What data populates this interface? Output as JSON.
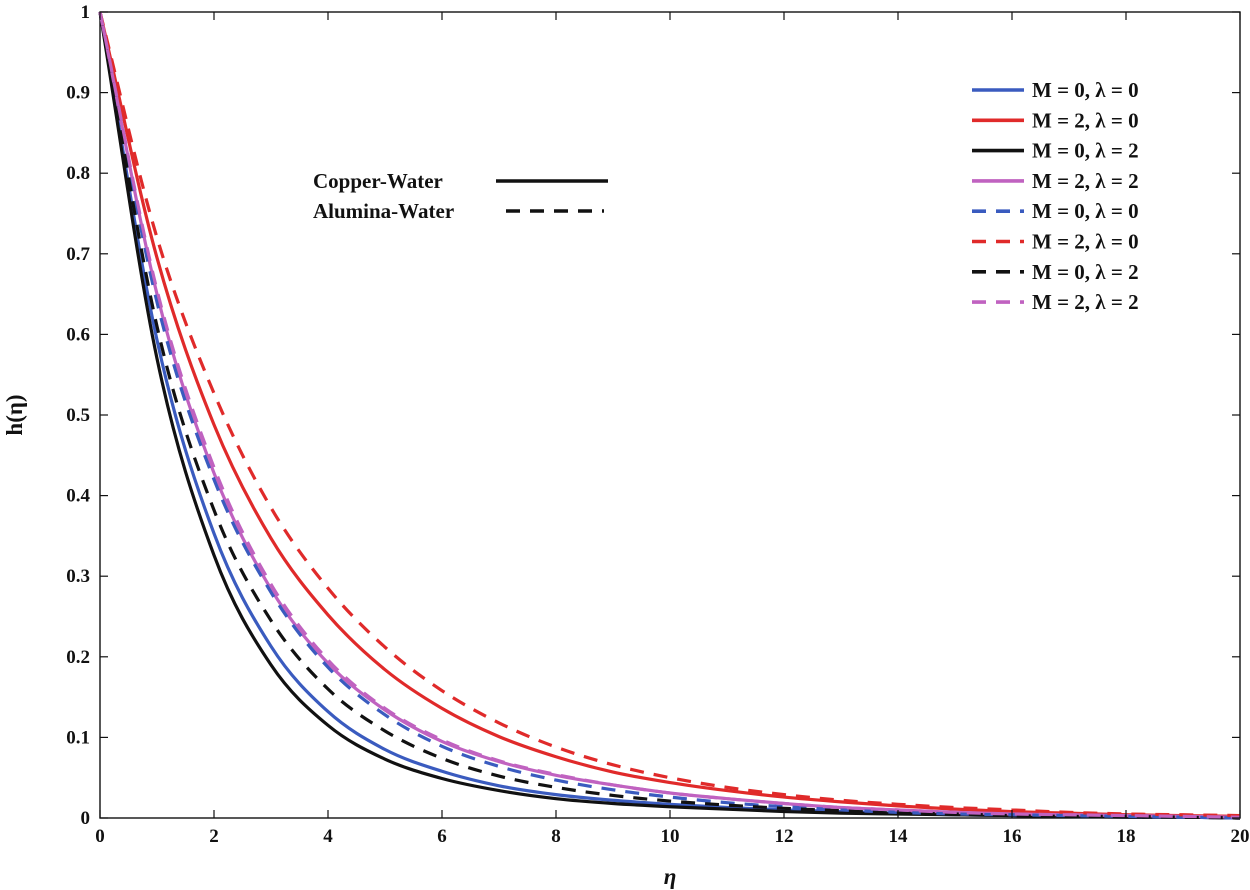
{
  "chart_data": {
    "type": "line",
    "title": "",
    "xlabel": "η",
    "ylabel": "h(η)",
    "xlim": [
      0,
      20
    ],
    "ylim": [
      0,
      1
    ],
    "x_ticks": [
      "0",
      "2",
      "4",
      "6",
      "8",
      "10",
      "12",
      "14",
      "16",
      "18",
      "20"
    ],
    "y_ticks": [
      "0",
      "0.1",
      "0.2",
      "0.3",
      "0.4",
      "0.5",
      "0.6",
      "0.7",
      "0.8",
      "0.9",
      "1"
    ],
    "grid": false,
    "legend_position": "top-right",
    "x": [
      0,
      1,
      2,
      3,
      4,
      5,
      6,
      7,
      8,
      9,
      10,
      11,
      12,
      13,
      14,
      15,
      16,
      17,
      18,
      19,
      20
    ],
    "series": [
      {
        "name": "M = 0, λ = 0",
        "style": "solid",
        "color": "#3a5bbf",
        "values": [
          1.0,
          0.593,
          0.353,
          0.213,
          0.132,
          0.085,
          0.058,
          0.04,
          0.029,
          0.022,
          0.017,
          0.013,
          0.01,
          0.008,
          0.006,
          0.004,
          0.003,
          0.002,
          0.001,
          0.001,
          0.0
        ]
      },
      {
        "name": "M = 2, λ = 0",
        "style": "solid",
        "color": "#e02a2a",
        "values": [
          1.0,
          0.695,
          0.488,
          0.347,
          0.252,
          0.184,
          0.136,
          0.101,
          0.076,
          0.057,
          0.044,
          0.034,
          0.026,
          0.02,
          0.015,
          0.011,
          0.008,
          0.006,
          0.004,
          0.003,
          0.002
        ]
      },
      {
        "name": "M = 0, λ = 2",
        "style": "solid",
        "color": "#111111",
        "values": [
          1.0,
          0.57,
          0.326,
          0.19,
          0.115,
          0.073,
          0.049,
          0.034,
          0.024,
          0.018,
          0.014,
          0.011,
          0.008,
          0.006,
          0.005,
          0.004,
          0.003,
          0.002,
          0.001,
          0.001,
          0.0
        ]
      },
      {
        "name": "M = 2, λ = 2",
        "style": "solid",
        "color": "#c062c0",
        "values": [
          1.0,
          0.65,
          0.428,
          0.284,
          0.192,
          0.134,
          0.095,
          0.07,
          0.053,
          0.041,
          0.031,
          0.024,
          0.018,
          0.013,
          0.01,
          0.007,
          0.005,
          0.004,
          0.003,
          0.002,
          0.001
        ]
      },
      {
        "name": "M = 0, λ = 0",
        "style": "dashed",
        "color": "#3a5bbf",
        "values": [
          1.0,
          0.64,
          0.42,
          0.28,
          0.187,
          0.128,
          0.089,
          0.064,
          0.047,
          0.035,
          0.026,
          0.019,
          0.014,
          0.01,
          0.007,
          0.005,
          0.004,
          0.003,
          0.002,
          0.001,
          0.0
        ]
      },
      {
        "name": "M = 2, λ = 0",
        "style": "dashed",
        "color": "#e02a2a",
        "values": [
          1.0,
          0.72,
          0.527,
          0.385,
          0.285,
          0.212,
          0.158,
          0.118,
          0.088,
          0.066,
          0.05,
          0.038,
          0.029,
          0.022,
          0.017,
          0.013,
          0.01,
          0.007,
          0.005,
          0.004,
          0.003
        ]
      },
      {
        "name": "M = 0, λ = 2",
        "style": "dashed",
        "color": "#111111",
        "values": [
          1.0,
          0.61,
          0.382,
          0.245,
          0.16,
          0.108,
          0.074,
          0.052,
          0.038,
          0.028,
          0.021,
          0.016,
          0.012,
          0.009,
          0.006,
          0.005,
          0.003,
          0.002,
          0.002,
          0.001,
          0.0
        ]
      },
      {
        "name": "M = 2, λ = 2",
        "style": "dashed",
        "color": "#c062c0",
        "values": [
          1.0,
          0.655,
          0.435,
          0.29,
          0.196,
          0.136,
          0.097,
          0.071,
          0.054,
          0.041,
          0.031,
          0.024,
          0.018,
          0.013,
          0.01,
          0.007,
          0.005,
          0.004,
          0.003,
          0.002,
          0.001
        ]
      }
    ],
    "annotations": [
      {
        "text": "Copper-Water",
        "style": "solid",
        "color": "#111111"
      },
      {
        "text": "Alumina-Water",
        "style": "dashed",
        "color": "#111111"
      }
    ]
  }
}
